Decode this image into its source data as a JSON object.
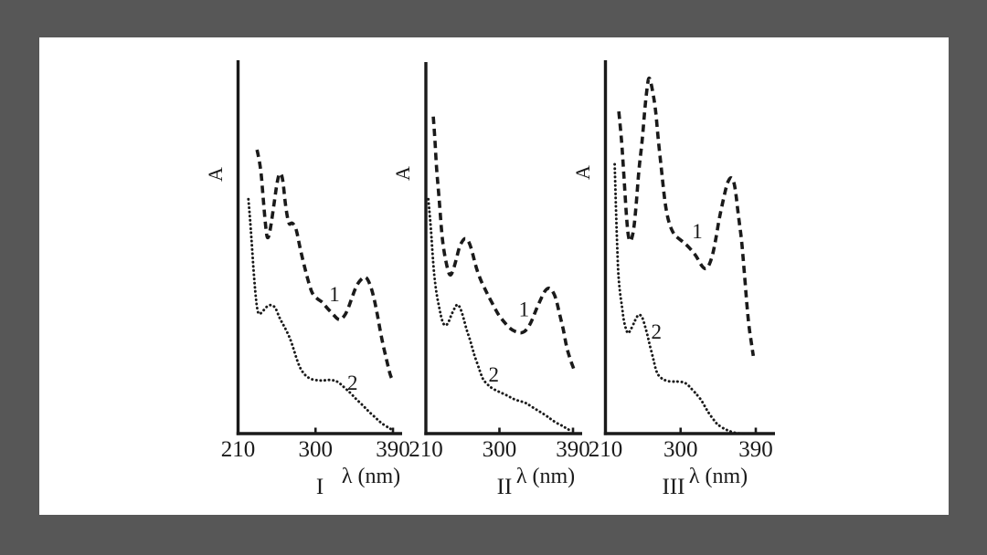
{
  "colors": {
    "background": "#575757",
    "card": "#ffffff",
    "ink": "#1a1a1a"
  },
  "chart_data": [
    {
      "type": "line",
      "panel_label": "I",
      "ylabel": "A",
      "xlabel": "λ (nm)",
      "x_ticks": [
        210,
        300,
        390
      ],
      "xlim": [
        210,
        400
      ],
      "ylim": [
        0,
        1
      ],
      "grid": false,
      "series": [
        {
          "name": "1",
          "style": "dashed",
          "label_pos": [
            322,
            0.376
          ],
          "points": [
            [
              232,
              0.764
            ],
            [
              236,
              0.725
            ],
            [
              239,
              0.639
            ],
            [
              242,
              0.558
            ],
            [
              244,
              0.521
            ],
            [
              247,
              0.54
            ],
            [
              252,
              0.622
            ],
            [
              256,
              0.686
            ],
            [
              259,
              0.705
            ],
            [
              262,
              0.686
            ],
            [
              265,
              0.614
            ],
            [
              269,
              0.56
            ],
            [
              272,
              0.568
            ],
            [
              275,
              0.563
            ],
            [
              278,
              0.548
            ],
            [
              282,
              0.499
            ],
            [
              288,
              0.442
            ],
            [
              293,
              0.398
            ],
            [
              297,
              0.373
            ],
            [
              303,
              0.361
            ],
            [
              308,
              0.354
            ],
            [
              313,
              0.339
            ],
            [
              320,
              0.322
            ],
            [
              326,
              0.307
            ],
            [
              330,
              0.307
            ],
            [
              336,
              0.324
            ],
            [
              342,
              0.364
            ],
            [
              348,
              0.401
            ],
            [
              354,
              0.418
            ],
            [
              358,
              0.423
            ],
            [
              362,
              0.41
            ],
            [
              367,
              0.376
            ],
            [
              372,
              0.319
            ],
            [
              377,
              0.253
            ],
            [
              383,
              0.194
            ],
            [
              387,
              0.155
            ],
            [
              390,
              0.143
            ]
          ]
        },
        {
          "name": "2",
          "style": "dotted",
          "label_pos": [
            343,
            0.138
          ],
          "points": [
            [
              222,
              0.631
            ],
            [
              224,
              0.577
            ],
            [
              226,
              0.509
            ],
            [
              228,
              0.44
            ],
            [
              230,
              0.381
            ],
            [
              232,
              0.337
            ],
            [
              234,
              0.319
            ],
            [
              238,
              0.327
            ],
            [
              242,
              0.339
            ],
            [
              246,
              0.346
            ],
            [
              250,
              0.346
            ],
            [
              254,
              0.337
            ],
            [
              258,
              0.312
            ],
            [
              262,
              0.295
            ],
            [
              266,
              0.278
            ],
            [
              271,
              0.253
            ],
            [
              275,
              0.224
            ],
            [
              279,
              0.194
            ],
            [
              283,
              0.172
            ],
            [
              288,
              0.157
            ],
            [
              292,
              0.15
            ],
            [
              297,
              0.145
            ],
            [
              304,
              0.143
            ],
            [
              310,
              0.143
            ],
            [
              316,
              0.145
            ],
            [
              322,
              0.143
            ],
            [
              327,
              0.138
            ],
            [
              333,
              0.125
            ],
            [
              340,
              0.111
            ],
            [
              347,
              0.093
            ],
            [
              355,
              0.076
            ],
            [
              362,
              0.059
            ],
            [
              370,
              0.042
            ],
            [
              377,
              0.027
            ],
            [
              384,
              0.017
            ],
            [
              389,
              0.01
            ]
          ]
        }
      ]
    },
    {
      "type": "line",
      "panel_label": "II",
      "ylabel": "A",
      "xlabel": "λ (nm)",
      "x_ticks": [
        210,
        300,
        390
      ],
      "xlim": [
        210,
        400
      ],
      "ylim": [
        0,
        1
      ],
      "grid": false,
      "series": [
        {
          "name": "1",
          "style": "dashed",
          "label_pos": [
            330,
            0.335
          ],
          "points": [
            [
              219,
              0.853
            ],
            [
              221,
              0.799
            ],
            [
              223,
              0.713
            ],
            [
              226,
              0.639
            ],
            [
              229,
              0.548
            ],
            [
              232,
              0.491
            ],
            [
              236,
              0.447
            ],
            [
              239,
              0.425
            ],
            [
              242,
              0.43
            ],
            [
              247,
              0.467
            ],
            [
              251,
              0.504
            ],
            [
              256,
              0.523
            ],
            [
              259,
              0.526
            ],
            [
              263,
              0.516
            ],
            [
              267,
              0.487
            ],
            [
              271,
              0.45
            ],
            [
              277,
              0.413
            ],
            [
              283,
              0.386
            ],
            [
              288,
              0.364
            ],
            [
              294,
              0.339
            ],
            [
              299,
              0.319
            ],
            [
              305,
              0.302
            ],
            [
              311,
              0.287
            ],
            [
              316,
              0.278
            ],
            [
              322,
              0.273
            ],
            [
              327,
              0.27
            ],
            [
              333,
              0.278
            ],
            [
              339,
              0.3
            ],
            [
              344,
              0.329
            ],
            [
              350,
              0.359
            ],
            [
              355,
              0.383
            ],
            [
              360,
              0.393
            ],
            [
              364,
              0.388
            ],
            [
              369,
              0.366
            ],
            [
              373,
              0.327
            ],
            [
              378,
              0.283
            ],
            [
              382,
              0.233
            ],
            [
              387,
              0.197
            ],
            [
              391,
              0.174
            ]
          ]
        },
        {
          "name": "2",
          "style": "dotted",
          "label_pos": [
            293,
            0.16
          ],
          "points": [
            [
              213,
              0.631
            ],
            [
              216,
              0.558
            ],
            [
              218,
              0.487
            ],
            [
              220,
              0.43
            ],
            [
              223,
              0.376
            ],
            [
              227,
              0.332
            ],
            [
              230,
              0.302
            ],
            [
              233,
              0.29
            ],
            [
              237,
              0.295
            ],
            [
              241,
              0.319
            ],
            [
              246,
              0.342
            ],
            [
              249,
              0.349
            ],
            [
              252,
              0.339
            ],
            [
              256,
              0.312
            ],
            [
              260,
              0.278
            ],
            [
              264,
              0.253
            ],
            [
              267,
              0.229
            ],
            [
              270,
              0.206
            ],
            [
              274,
              0.182
            ],
            [
              277,
              0.162
            ],
            [
              280,
              0.145
            ],
            [
              285,
              0.133
            ],
            [
              290,
              0.123
            ],
            [
              297,
              0.115
            ],
            [
              304,
              0.108
            ],
            [
              311,
              0.101
            ],
            [
              317,
              0.093
            ],
            [
              324,
              0.088
            ],
            [
              331,
              0.084
            ],
            [
              337,
              0.076
            ],
            [
              344,
              0.066
            ],
            [
              351,
              0.057
            ],
            [
              358,
              0.047
            ],
            [
              364,
              0.037
            ],
            [
              371,
              0.027
            ],
            [
              378,
              0.02
            ],
            [
              383,
              0.012
            ],
            [
              389,
              0.007
            ]
          ]
        }
      ]
    },
    {
      "type": "line",
      "panel_label": "III",
      "ylabel": "A",
      "xlabel": "λ (nm)",
      "x_ticks": [
        210,
        300,
        390
      ],
      "xlim": [
        210,
        400
      ],
      "ylim": [
        0,
        1
      ],
      "grid": false,
      "series": [
        {
          "name": "1",
          "style": "dashed",
          "label_pos": [
            320,
            0.545
          ],
          "points": [
            [
              226,
              0.867
            ],
            [
              229,
              0.799
            ],
            [
              231,
              0.732
            ],
            [
              233,
              0.663
            ],
            [
              235,
              0.59
            ],
            [
              237,
              0.533
            ],
            [
              240,
              0.511
            ],
            [
              244,
              0.548
            ],
            [
              247,
              0.619
            ],
            [
              250,
              0.713
            ],
            [
              254,
              0.786
            ],
            [
              257,
              0.872
            ],
            [
              260,
              0.934
            ],
            [
              262,
              0.963
            ],
            [
              265,
              0.941
            ],
            [
              270,
              0.877
            ],
            [
              273,
              0.794
            ],
            [
              277,
              0.713
            ],
            [
              280,
              0.646
            ],
            [
              283,
              0.597
            ],
            [
              287,
              0.56
            ],
            [
              292,
              0.536
            ],
            [
              297,
              0.526
            ],
            [
              303,
              0.516
            ],
            [
              308,
              0.506
            ],
            [
              314,
              0.491
            ],
            [
              319,
              0.477
            ],
            [
              324,
              0.455
            ],
            [
              329,
              0.442
            ],
            [
              333,
              0.447
            ],
            [
              338,
              0.477
            ],
            [
              342,
              0.521
            ],
            [
              346,
              0.577
            ],
            [
              351,
              0.629
            ],
            [
              355,
              0.668
            ],
            [
              359,
              0.69
            ],
            [
              363,
              0.686
            ],
            [
              366,
              0.651
            ],
            [
              369,
              0.59
            ],
            [
              373,
              0.523
            ],
            [
              376,
              0.442
            ],
            [
              379,
              0.356
            ],
            [
              382,
              0.283
            ],
            [
              385,
              0.241
            ],
            [
              387,
              0.209
            ]
          ]
        },
        {
          "name": "2",
          "style": "dotted",
          "label_pos": [
            271,
            0.275
          ],
          "points": [
            [
              221,
              0.725
            ],
            [
              222,
              0.651
            ],
            [
              223,
              0.577
            ],
            [
              224,
              0.509
            ],
            [
              225,
              0.442
            ],
            [
              227,
              0.386
            ],
            [
              230,
              0.339
            ],
            [
              232,
              0.302
            ],
            [
              235,
              0.278
            ],
            [
              237,
              0.268
            ],
            [
              240,
              0.278
            ],
            [
              244,
              0.297
            ],
            [
              247,
              0.312
            ],
            [
              250,
              0.322
            ],
            [
              254,
              0.315
            ],
            [
              257,
              0.292
            ],
            [
              260,
              0.268
            ],
            [
              263,
              0.238
            ],
            [
              267,
              0.204
            ],
            [
              270,
              0.174
            ],
            [
              273,
              0.157
            ],
            [
              278,
              0.147
            ],
            [
              282,
              0.143
            ],
            [
              287,
              0.14
            ],
            [
              293,
              0.14
            ],
            [
              298,
              0.14
            ],
            [
              304,
              0.138
            ],
            [
              308,
              0.133
            ],
            [
              312,
              0.123
            ],
            [
              317,
              0.111
            ],
            [
              321,
              0.101
            ],
            [
              326,
              0.086
            ],
            [
              330,
              0.069
            ],
            [
              334,
              0.054
            ],
            [
              339,
              0.039
            ],
            [
              343,
              0.027
            ],
            [
              347,
              0.02
            ],
            [
              353,
              0.012
            ],
            [
              358,
              0.007
            ],
            [
              365,
              0.002
            ],
            [
              373,
              0.0
            ],
            [
              381,
              0.0
            ],
            [
              389,
              0.0
            ]
          ]
        }
      ]
    }
  ]
}
